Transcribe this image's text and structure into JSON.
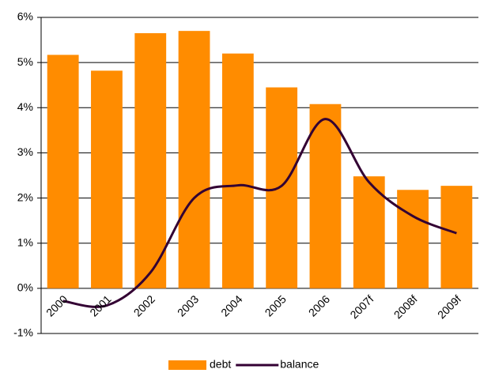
{
  "chart_data": {
    "type": "bar",
    "categories": [
      "2000",
      "2001",
      "2002",
      "2003",
      "2004",
      "2005",
      "2006",
      "2007f",
      "2008f",
      "2009f"
    ],
    "series": [
      {
        "name": "debt",
        "type": "bar",
        "color": "#ff8c00",
        "values": [
          5.17,
          4.82,
          5.65,
          5.7,
          5.2,
          4.45,
          4.08,
          2.48,
          2.18,
          2.27
        ]
      },
      {
        "name": "balance",
        "type": "line",
        "color": "#330033",
        "values": [
          -0.28,
          -0.38,
          0.35,
          2.0,
          2.28,
          2.27,
          3.75,
          2.35,
          1.6,
          1.22
        ]
      }
    ],
    "ylim": [
      -1,
      6
    ],
    "yticks": [
      {
        "value": -1,
        "label": "-1%"
      },
      {
        "value": 0,
        "label": "0%"
      },
      {
        "value": 1,
        "label": "1%"
      },
      {
        "value": 2,
        "label": "2%"
      },
      {
        "value": 3,
        "label": "3%"
      },
      {
        "value": 4,
        "label": "4%"
      },
      {
        "value": 5,
        "label": "5%"
      },
      {
        "value": 6,
        "label": "6%"
      }
    ],
    "grid": true,
    "legend": "bottom"
  }
}
